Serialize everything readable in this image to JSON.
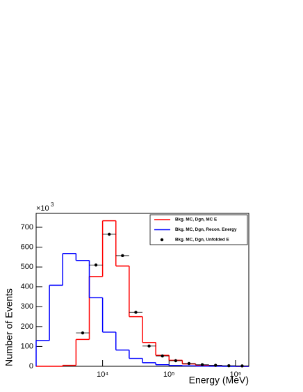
{
  "chart_data": {
    "type": "histogram",
    "x_label": "Energy (MeV)",
    "y_label": "Number of Events",
    "y_multiplier": {
      "base": "×10",
      "exponent": "3"
    },
    "x_log": true,
    "xlim": [
      1000,
      1584893
    ],
    "ylim": [
      0,
      770
    ],
    "xticks": [
      {
        "value": 10000,
        "label": "10⁴"
      },
      {
        "value": 100000,
        "label": "10⁵"
      },
      {
        "value": 1000000,
        "label": "10⁶"
      }
    ],
    "yticks": [
      0,
      100,
      200,
      300,
      400,
      500,
      600,
      700
    ],
    "bins": [
      1000,
      1585,
      2512,
      3981,
      6310,
      10000,
      15849,
      25119,
      39811,
      63096,
      100000,
      158489,
      251189,
      398107,
      630957,
      1000000,
      1584893
    ],
    "legend": "top right",
    "series": [
      {
        "name": "Bkg. MC, Dgn, MC E",
        "color": "#ff0000",
        "style": "step",
        "values": [
          0,
          0,
          5,
          135,
          452,
          733,
          505,
          250,
          120,
          55,
          30,
          12,
          6,
          3,
          1,
          0
        ]
      },
      {
        "name": "Bkg. MC, Dgn, Recon. Energy",
        "color": "#0000ff",
        "style": "step",
        "values": [
          130,
          408,
          568,
          533,
          345,
          172,
          82,
          40,
          18,
          8,
          4,
          2,
          1,
          0.5,
          0,
          0
        ]
      },
      {
        "name": "Bkg. MC, Dgn, Unfolded E",
        "color": "#000000",
        "style": "points",
        "values": [
          null,
          null,
          null,
          168,
          510,
          665,
          557,
          272,
          102,
          52,
          28,
          14,
          8,
          5,
          3,
          2
        ]
      }
    ]
  }
}
